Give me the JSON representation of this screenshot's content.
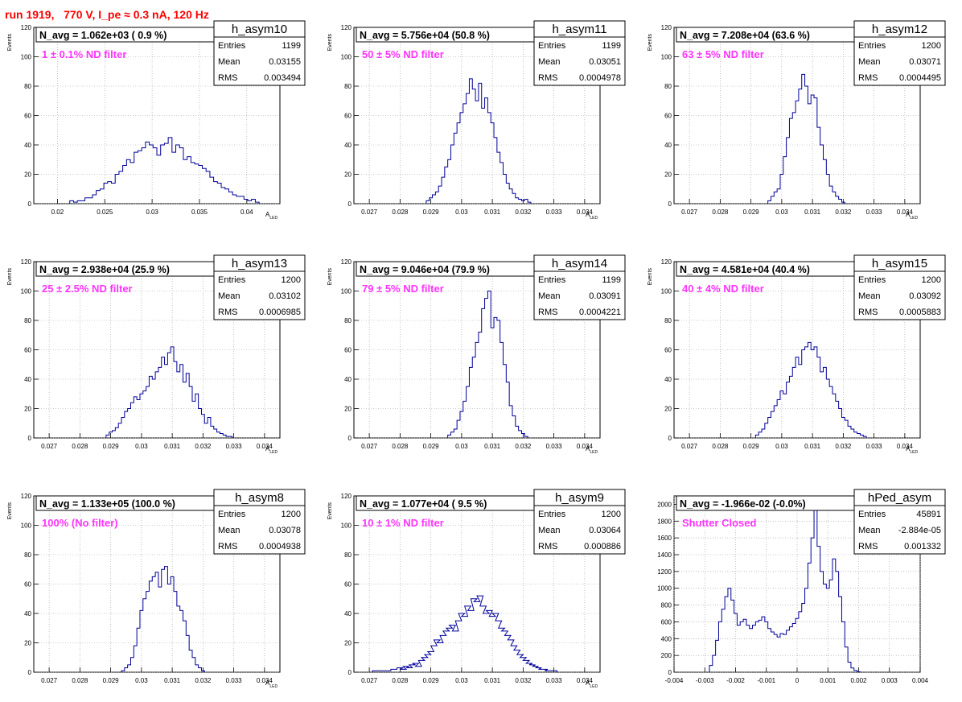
{
  "page_title": "run 1919,   770 V, I_pe ≈ 0.3 nA, 120 Hz",
  "chart_data": [
    {
      "type": "bar",
      "name": "h_asym10",
      "ylabel": "Events",
      "xlabel": "A",
      "xlabel_sub": "LED",
      "title_left": "N_avg = 1.062e+03 ( 0.9 %)",
      "annotation": "1 ± 0.1% ND filter",
      "stats": {
        "entries_label": "Entries",
        "entries": "1199",
        "mean_label": "Mean",
        "mean": "0.03155",
        "rms_label": "RMS",
        "rms": "0.003494"
      },
      "xlim": [
        0.0175,
        0.0435
      ],
      "ylim": [
        0,
        120
      ],
      "xticks": [
        0.02,
        0.025,
        0.03,
        0.035,
        0.04
      ],
      "xtick_labels": [
        "0.02",
        "0.025",
        "0.03",
        "0.035",
        "0.04"
      ],
      "yticks": [
        0,
        20,
        40,
        60,
        80,
        100,
        120
      ],
      "ytick_labels": [
        "0",
        "20",
        "40",
        "60",
        "80",
        "100",
        "120"
      ],
      "x": [
        0.0215,
        0.0219,
        0.0223,
        0.0227,
        0.0231,
        0.0235,
        0.0239,
        0.0243,
        0.0247,
        0.0251,
        0.0255,
        0.0259,
        0.0263,
        0.0267,
        0.0271,
        0.0275,
        0.0279,
        0.0283,
        0.0287,
        0.0291,
        0.0295,
        0.0299,
        0.0303,
        0.0307,
        0.0311,
        0.0315,
        0.0319,
        0.0323,
        0.0327,
        0.0331,
        0.0335,
        0.0339,
        0.0343,
        0.0347,
        0.0351,
        0.0355,
        0.0359,
        0.0363,
        0.0367,
        0.0371,
        0.0375,
        0.0379,
        0.0383,
        0.0387,
        0.0391,
        0.0395,
        0.0399,
        0.0403,
        0.0407,
        0.0411
      ],
      "values": [
        2,
        1,
        2,
        2,
        4,
        4,
        6,
        9,
        10,
        14,
        15,
        14,
        20,
        22,
        26,
        30,
        28,
        35,
        36,
        38,
        42,
        40,
        38,
        33,
        40,
        41,
        45,
        35,
        40,
        38,
        30,
        32,
        28,
        27,
        26,
        24,
        22,
        18,
        15,
        14,
        11,
        10,
        8,
        6,
        5,
        5,
        3,
        2,
        3,
        1
      ]
    },
    {
      "type": "bar",
      "name": "h_asym11",
      "ylabel": "Events",
      "xlabel": "A",
      "xlabel_sub": "LED",
      "title_left": "N_avg = 5.756e+04 (50.8 %)",
      "annotation": "50 ± 5% ND filter",
      "stats": {
        "entries_label": "Entries",
        "entries": "1199",
        "mean_label": "Mean",
        "mean": "0.03051",
        "rms_label": "RMS",
        "rms": "0.0004978"
      },
      "xlim": [
        0.0265,
        0.0345
      ],
      "ylim": [
        0,
        120
      ],
      "xticks": [
        0.027,
        0.028,
        0.029,
        0.03,
        0.031,
        0.032,
        0.033,
        0.034
      ],
      "xtick_labels": [
        "0.027",
        "0.028",
        "0.029",
        "0.03",
        "0.031",
        "0.032",
        "0.033",
        "0.034"
      ],
      "yticks": [
        0,
        20,
        40,
        60,
        80,
        100,
        120
      ],
      "ytick_labels": [
        "0",
        "20",
        "40",
        "60",
        "80",
        "100",
        "120"
      ],
      "x": [
        0.0289,
        0.029,
        0.0291,
        0.0292,
        0.0293,
        0.0294,
        0.0295,
        0.0296,
        0.0297,
        0.0298,
        0.0299,
        0.03,
        0.0301,
        0.0302,
        0.0303,
        0.0304,
        0.0305,
        0.0306,
        0.0307,
        0.0308,
        0.0309,
        0.031,
        0.0311,
        0.0312,
        0.0313,
        0.0314,
        0.0315,
        0.0316,
        0.0317,
        0.0318,
        0.0319,
        0.032,
        0.0321,
        0.0322
      ],
      "values": [
        2,
        4,
        6,
        8,
        12,
        18,
        25,
        30,
        40,
        48,
        55,
        62,
        68,
        75,
        85,
        78,
        70,
        82,
        65,
        72,
        62,
        55,
        45,
        35,
        28,
        20,
        14,
        10,
        7,
        4,
        3,
        2,
        3,
        1
      ]
    },
    {
      "type": "bar",
      "name": "h_asym12",
      "ylabel": "Events",
      "xlabel": "A",
      "xlabel_sub": "LED",
      "title_left": "N_avg = 7.208e+04 (63.6 %)",
      "annotation": "63 ± 5% ND filter",
      "stats": {
        "entries_label": "Entries",
        "entries": "1200",
        "mean_label": "Mean",
        "mean": "0.03071",
        "rms_label": "RMS",
        "rms": "0.0004495"
      },
      "xlim": [
        0.0265,
        0.0345
      ],
      "ylim": [
        0,
        120
      ],
      "xticks": [
        0.027,
        0.028,
        0.029,
        0.03,
        0.031,
        0.032,
        0.033,
        0.034
      ],
      "xtick_labels": [
        "0.027",
        "0.028",
        "0.029",
        "0.03",
        "0.031",
        "0.032",
        "0.033",
        "0.034"
      ],
      "yticks": [
        0,
        20,
        40,
        60,
        80,
        100,
        120
      ],
      "ytick_labels": [
        "0",
        "20",
        "40",
        "60",
        "80",
        "100",
        "120"
      ],
      "x": [
        0.0296,
        0.0297,
        0.0298,
        0.0299,
        0.03,
        0.0301,
        0.0302,
        0.0303,
        0.0304,
        0.0305,
        0.0306,
        0.0307,
        0.0308,
        0.0309,
        0.031,
        0.0311,
        0.0312,
        0.0313,
        0.0314,
        0.0315,
        0.0316,
        0.0317,
        0.0318,
        0.0319,
        0.032
      ],
      "values": [
        2,
        5,
        8,
        10,
        20,
        32,
        45,
        58,
        62,
        70,
        78,
        88,
        80,
        68,
        74,
        72,
        52,
        40,
        30,
        20,
        12,
        8,
        5,
        3,
        1
      ]
    },
    {
      "type": "bar",
      "name": "h_asym13",
      "ylabel": "Events",
      "xlabel": "A",
      "xlabel_sub": "LED",
      "title_left": "N_avg = 2.938e+04 (25.9 %)",
      "annotation": "25 ± 2.5% ND filter",
      "stats": {
        "entries_label": "Entries",
        "entries": "1200",
        "mean_label": "Mean",
        "mean": "0.03102",
        "rms_label": "RMS",
        "rms": "0.0006985"
      },
      "xlim": [
        0.0265,
        0.0345
      ],
      "ylim": [
        0,
        120
      ],
      "xticks": [
        0.027,
        0.028,
        0.029,
        0.03,
        0.031,
        0.032,
        0.033,
        0.034
      ],
      "xtick_labels": [
        "0.027",
        "0.028",
        "0.029",
        "0.03",
        "0.031",
        "0.032",
        "0.033",
        "0.034"
      ],
      "yticks": [
        0,
        20,
        40,
        60,
        80,
        100,
        120
      ],
      "ytick_labels": [
        "0",
        "20",
        "40",
        "60",
        "80",
        "100",
        "120"
      ],
      "x": [
        0.0289,
        0.029,
        0.0291,
        0.0292,
        0.0293,
        0.0294,
        0.0295,
        0.0296,
        0.0297,
        0.0298,
        0.0299,
        0.03,
        0.0301,
        0.0302,
        0.0303,
        0.0304,
        0.0305,
        0.0306,
        0.0307,
        0.0308,
        0.0309,
        0.031,
        0.0311,
        0.0312,
        0.0313,
        0.0314,
        0.0315,
        0.0316,
        0.0317,
        0.0318,
        0.0319,
        0.032,
        0.0321,
        0.0322,
        0.0323,
        0.0324,
        0.0325,
        0.0326,
        0.0327,
        0.0328,
        0.0329
      ],
      "values": [
        2,
        4,
        5,
        7,
        10,
        14,
        18,
        20,
        24,
        28,
        26,
        30,
        32,
        35,
        42,
        40,
        45,
        48,
        55,
        50,
        58,
        62,
        52,
        45,
        50,
        38,
        44,
        35,
        25,
        30,
        20,
        16,
        10,
        14,
        8,
        6,
        4,
        3,
        2,
        1,
        1
      ]
    },
    {
      "type": "bar",
      "name": "h_asym14",
      "ylabel": "Events",
      "xlabel": "A",
      "xlabel_sub": "LED",
      "title_left": "N_avg = 9.046e+04 (79.9 %)",
      "annotation": "79 ± 5% ND filter",
      "stats": {
        "entries_label": "Entries",
        "entries": "1199",
        "mean_label": "Mean",
        "mean": "0.03091",
        "rms_label": "RMS",
        "rms": "0.0004221"
      },
      "xlim": [
        0.0265,
        0.0345
      ],
      "ylim": [
        0,
        120
      ],
      "xticks": [
        0.027,
        0.028,
        0.029,
        0.03,
        0.031,
        0.032,
        0.033,
        0.034
      ],
      "xtick_labels": [
        "0.027",
        "0.028",
        "0.029",
        "0.03",
        "0.031",
        "0.032",
        "0.033",
        "0.034"
      ],
      "yticks": [
        0,
        20,
        40,
        60,
        80,
        100,
        120
      ],
      "ytick_labels": [
        "0",
        "20",
        "40",
        "60",
        "80",
        "100",
        "120"
      ],
      "x": [
        0.0296,
        0.0297,
        0.0298,
        0.0299,
        0.03,
        0.0301,
        0.0302,
        0.0303,
        0.0304,
        0.0305,
        0.0306,
        0.0307,
        0.0308,
        0.0309,
        0.031,
        0.0311,
        0.0312,
        0.0313,
        0.0314,
        0.0315,
        0.0316,
        0.0317,
        0.0318,
        0.0319,
        0.032,
        0.0321
      ],
      "values": [
        2,
        4,
        6,
        12,
        18,
        25,
        35,
        48,
        55,
        65,
        72,
        88,
        95,
        100,
        75,
        82,
        80,
        65,
        50,
        38,
        22,
        15,
        8,
        5,
        3,
        1
      ]
    },
    {
      "type": "bar",
      "name": "h_asym15",
      "ylabel": "Events",
      "xlabel": "A",
      "xlabel_sub": "LED",
      "title_left": "N_avg = 4.581e+04 (40.4 %)",
      "annotation": "40 ± 4% ND filter",
      "stats": {
        "entries_label": "Entries",
        "entries": "1200",
        "mean_label": "Mean",
        "mean": "0.03092",
        "rms_label": "RMS",
        "rms": "0.0005883"
      },
      "xlim": [
        0.0265,
        0.0345
      ],
      "ylim": [
        0,
        120
      ],
      "xticks": [
        0.027,
        0.028,
        0.029,
        0.03,
        0.031,
        0.032,
        0.033,
        0.034
      ],
      "xtick_labels": [
        "0.027",
        "0.028",
        "0.029",
        "0.03",
        "0.031",
        "0.032",
        "0.033",
        "0.034"
      ],
      "yticks": [
        0,
        20,
        40,
        60,
        80,
        100,
        120
      ],
      "ytick_labels": [
        "0",
        "20",
        "40",
        "60",
        "80",
        "100",
        "120"
      ],
      "x": [
        0.0292,
        0.0293,
        0.0294,
        0.0295,
        0.0296,
        0.0297,
        0.0298,
        0.0299,
        0.03,
        0.0301,
        0.0302,
        0.0303,
        0.0304,
        0.0305,
        0.0306,
        0.0307,
        0.0308,
        0.0309,
        0.031,
        0.0311,
        0.0312,
        0.0313,
        0.0314,
        0.0315,
        0.0316,
        0.0317,
        0.0318,
        0.0319,
        0.032,
        0.0321,
        0.0322,
        0.0323,
        0.0324,
        0.0325,
        0.0326,
        0.0327
      ],
      "values": [
        2,
        4,
        6,
        10,
        14,
        18,
        22,
        26,
        32,
        30,
        38,
        42,
        48,
        55,
        50,
        60,
        62,
        65,
        60,
        62,
        55,
        45,
        48,
        40,
        35,
        30,
        25,
        20,
        14,
        12,
        8,
        6,
        4,
        3,
        2,
        1
      ]
    },
    {
      "type": "bar",
      "name": "h_asym8",
      "ylabel": "Events",
      "xlabel": "A",
      "xlabel_sub": "LED",
      "title_left": "N_avg = 1.133e+05 (100.0 %)",
      "annotation": "100% (No filter)",
      "stats": {
        "entries_label": "Entries",
        "entries": "1200",
        "mean_label": "Mean",
        "mean": "0.03078",
        "rms_label": "RMS",
        "rms": "0.0004938"
      },
      "xlim": [
        0.0265,
        0.0345
      ],
      "ylim": [
        0,
        120
      ],
      "xticks": [
        0.027,
        0.028,
        0.029,
        0.03,
        0.031,
        0.032,
        0.033,
        0.034
      ],
      "xtick_labels": [
        "0.027",
        "0.028",
        "0.029",
        "0.03",
        "0.031",
        "0.032",
        "0.033",
        "0.034"
      ],
      "yticks": [
        0,
        20,
        40,
        60,
        80,
        100,
        120
      ],
      "ytick_labels": [
        "0",
        "20",
        "40",
        "60",
        "80",
        "100",
        "120"
      ],
      "x": [
        0.0294,
        0.0295,
        0.0296,
        0.0297,
        0.0298,
        0.0299,
        0.03,
        0.0301,
        0.0302,
        0.0303,
        0.0304,
        0.0305,
        0.0306,
        0.0307,
        0.0308,
        0.0309,
        0.031,
        0.0311,
        0.0312,
        0.0313,
        0.0314,
        0.0315,
        0.0316,
        0.0317,
        0.0318,
        0.0319,
        0.032
      ],
      "values": [
        1,
        3,
        5,
        10,
        18,
        30,
        42,
        50,
        55,
        62,
        65,
        68,
        58,
        70,
        72,
        60,
        65,
        55,
        45,
        42,
        35,
        25,
        15,
        10,
        5,
        3,
        1
      ]
    },
    {
      "type": "bar",
      "name": "h_asym9",
      "ylabel": "Events",
      "xlabel": "A",
      "xlabel_sub": "LED",
      "title_left": "N_avg = 1.077e+04 ( 9.5 %)",
      "annotation": "10 ± 1% ND filter",
      "stats": {
        "entries_label": "Entries",
        "entries": "1200",
        "mean_label": "Mean",
        "mean": "0.03064",
        "rms_label": "RMS",
        "rms": "0.000886"
      },
      "xlim": [
        0.0265,
        0.0345
      ],
      "ylim": [
        0,
        120
      ],
      "xticks": [
        0.027,
        0.028,
        0.029,
        0.03,
        0.031,
        0.032,
        0.033,
        0.034
      ],
      "xtick_labels": [
        "0.027",
        "0.028",
        "0.029",
        "0.03",
        "0.031",
        "0.032",
        "0.033",
        "0.034"
      ],
      "yticks": [
        0,
        20,
        40,
        60,
        80,
        100,
        120
      ],
      "ytick_labels": [
        "0",
        "20",
        "40",
        "60",
        "80",
        "100",
        "120"
      ],
      "x": [
        0.0272,
        0.0274,
        0.0276,
        0.0278,
        0.028,
        0.0281,
        0.0282,
        0.0283,
        0.0284,
        0.0285,
        0.0286,
        0.0287,
        0.0288,
        0.0289,
        0.029,
        0.0291,
        0.0292,
        0.0293,
        0.0294,
        0.0295,
        0.0296,
        0.0297,
        0.0298,
        0.0299,
        0.03,
        0.0301,
        0.0302,
        0.0303,
        0.0304,
        0.0305,
        0.0306,
        0.0307,
        0.0308,
        0.0309,
        0.031,
        0.0311,
        0.0312,
        0.0313,
        0.0314,
        0.0315,
        0.0316,
        0.0317,
        0.0318,
        0.0319,
        0.032,
        0.0321,
        0.0322,
        0.0323,
        0.0324,
        0.0325,
        0.0326,
        0.0327,
        0.0328,
        0.0329,
        0.033
      ],
      "values": [
        1,
        1,
        1,
        2,
        3,
        2,
        4,
        3,
        5,
        6,
        4,
        8,
        10,
        12,
        14,
        18,
        22,
        20,
        25,
        28,
        30,
        32,
        28,
        35,
        40,
        38,
        45,
        42,
        50,
        48,
        52,
        45,
        40,
        42,
        38,
        40,
        35,
        30,
        28,
        25,
        22,
        18,
        15,
        12,
        10,
        8,
        6,
        5,
        4,
        3,
        2,
        2,
        1,
        1,
        1
      ]
    },
    {
      "type": "bar",
      "name": "hPed_asym",
      "ylabel": "",
      "xlabel": "",
      "xlabel_sub": "",
      "title_left": "N_avg = -1.966e-02 (-0.0%)",
      "annotation": "Shutter Closed",
      "stats": {
        "entries_label": "Entries",
        "entries": "45891",
        "mean_label": "Mean",
        "mean": "-2.884e-05",
        "rms_label": "RMS",
        "rms": "0.001332"
      },
      "xlim": [
        -0.004,
        0.004
      ],
      "ylim": [
        0,
        2100
      ],
      "xticks": [
        -0.004,
        -0.003,
        -0.002,
        -0.001,
        0,
        0.001,
        0.002,
        0.003,
        0.004
      ],
      "xtick_labels": [
        "-0.004",
        "-0.003",
        "-0.002",
        "-0.001",
        "0",
        "0.001",
        "0.002",
        "0.003",
        "0.004"
      ],
      "yticks": [
        0,
        200,
        400,
        600,
        800,
        1000,
        1200,
        1400,
        1600,
        1800,
        2000
      ],
      "ytick_labels": [
        "0",
        "200",
        "400",
        "600",
        "800",
        "1000",
        "1200",
        "1400",
        "1600",
        "1800",
        "2000"
      ],
      "x": [
        -0.0028,
        -0.0027,
        -0.0026,
        -0.0025,
        -0.0024,
        -0.0023,
        -0.0022,
        -0.0021,
        -0.002,
        -0.0019,
        -0.0018,
        -0.0017,
        -0.0016,
        -0.0015,
        -0.0014,
        -0.0013,
        -0.0012,
        -0.0011,
        -0.001,
        -0.0009,
        -0.0008,
        -0.0007,
        -0.0006,
        -0.0005,
        -0.0004,
        -0.0003,
        -0.0002,
        -0.0001,
        0,
        0.0001,
        0.0002,
        0.0003,
        0.0004,
        0.0005,
        0.0006,
        0.0007,
        0.0008,
        0.0009,
        0.001,
        0.0011,
        0.0012,
        0.0013,
        0.0014,
        0.0015,
        0.0016,
        0.0017,
        0.0018,
        0.0019,
        0.002
      ],
      "values": [
        80,
        200,
        380,
        600,
        750,
        900,
        1000,
        860,
        700,
        560,
        600,
        630,
        560,
        520,
        560,
        600,
        620,
        660,
        600,
        520,
        480,
        450,
        420,
        460,
        450,
        500,
        540,
        580,
        640,
        720,
        820,
        1000,
        1300,
        1600,
        2000,
        1500,
        1200,
        1050,
        1000,
        1100,
        1350,
        1200,
        900,
        600,
        300,
        120,
        50,
        20,
        5
      ]
    }
  ]
}
